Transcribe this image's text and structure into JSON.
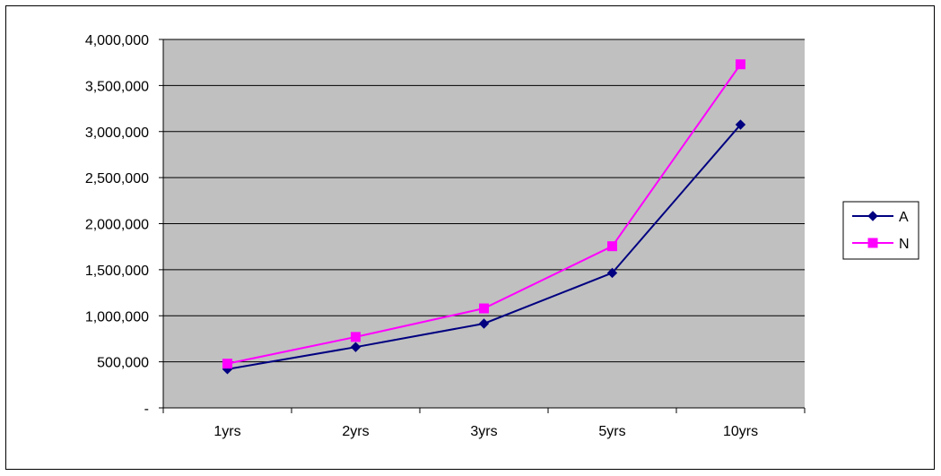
{
  "colors": {
    "plot_background": "#C0C0C0",
    "gridline": "#000000",
    "series_a": "#000080",
    "series_n": "#FF00FF"
  },
  "chart_data": {
    "type": "line",
    "categories": [
      "1yrs",
      "2yrs",
      "3yrs",
      "5yrs",
      "10yrs"
    ],
    "series": [
      {
        "name": "A",
        "marker": "diamond",
        "values": [
          420000,
          660000,
          915000,
          1465000,
          3075000
        ]
      },
      {
        "name": "N",
        "marker": "square",
        "values": [
          480000,
          770000,
          1080000,
          1755000,
          3730000
        ]
      }
    ],
    "ylim": [
      0,
      4000000
    ],
    "yticks": [
      0,
      500000,
      1000000,
      1500000,
      2000000,
      2500000,
      3000000,
      3500000,
      4000000
    ],
    "ytick_labels": [
      "-",
      "500,000",
      "1,000,000",
      "1,500,000",
      "2,000,000",
      "2,500,000",
      "3,000,000",
      "3,500,000",
      "4,000,000"
    ],
    "grid": true,
    "legend": "right",
    "title": "",
    "xlabel": "",
    "ylabel": ""
  }
}
